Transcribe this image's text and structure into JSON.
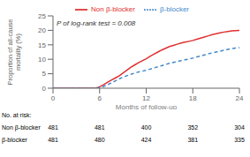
{
  "chart_data": {
    "type": "line",
    "xlabel": "Months of follow-up",
    "ylabel": "Proportion of all-cause\nmortality (%)",
    "xlim": [
      0,
      24
    ],
    "ylim": [
      0,
      25
    ],
    "xticks": [
      0,
      6,
      12,
      18,
      24
    ],
    "yticks": [
      0,
      5,
      10,
      15,
      20,
      25
    ],
    "annotation": "P of log-rank test = 0.008",
    "legend": "top",
    "grid": false,
    "x": [
      0,
      5.5,
      6.0,
      6.5,
      7.0,
      7.5,
      8.0,
      8.5,
      9.0,
      9.5,
      10.0,
      10.5,
      11.0,
      11.5,
      12.0,
      12.5,
      13.0,
      13.5,
      14.0,
      14.5,
      15.0,
      15.5,
      16.0,
      16.5,
      17.0,
      17.5,
      18.0,
      18.5,
      19.0,
      19.5,
      20.0,
      20.5,
      21.0,
      21.5,
      22.0,
      22.5,
      23.0,
      23.5,
      24.0
    ],
    "series": [
      {
        "name": "Non β-blocker",
        "color": "#e03030",
        "line_style": "solid",
        "values": [
          0,
          0,
          0.5,
          1.2,
          2.0,
          2.8,
          3.5,
          4.2,
          5.2,
          6.2,
          7.2,
          8.0,
          8.8,
          9.5,
          10.2,
          11.0,
          11.8,
          12.5,
          13.2,
          13.8,
          14.4,
          14.8,
          15.2,
          15.6,
          15.9,
          16.2,
          16.5,
          16.9,
          17.3,
          17.7,
          18.1,
          18.5,
          18.8,
          19.1,
          19.4,
          19.6,
          19.8,
          19.9,
          20.0
        ]
      },
      {
        "name": "β-blocker",
        "color": "#4488cc",
        "line_style": "dashed",
        "values": [
          0,
          0,
          0.2,
          0.6,
          1.2,
          1.8,
          2.5,
          3.2,
          3.8,
          4.3,
          4.8,
          5.2,
          5.6,
          5.9,
          6.2,
          6.6,
          7.0,
          7.4,
          7.8,
          8.2,
          8.6,
          8.9,
          9.2,
          9.5,
          9.8,
          10.1,
          10.4,
          10.8,
          11.1,
          11.5,
          11.9,
          12.2,
          12.5,
          12.8,
          13.1,
          13.4,
          13.7,
          13.9,
          14.0
        ]
      }
    ],
    "risk_table": {
      "title": "No. at risk:",
      "timepoints": [
        0,
        6,
        12,
        18,
        24
      ],
      "rows": [
        {
          "label": "Non β-blocker",
          "values": [
            481,
            481,
            400,
            352,
            304
          ]
        },
        {
          "label": "β-blocker",
          "values": [
            481,
            480,
            424,
            381,
            335
          ]
        }
      ]
    }
  }
}
